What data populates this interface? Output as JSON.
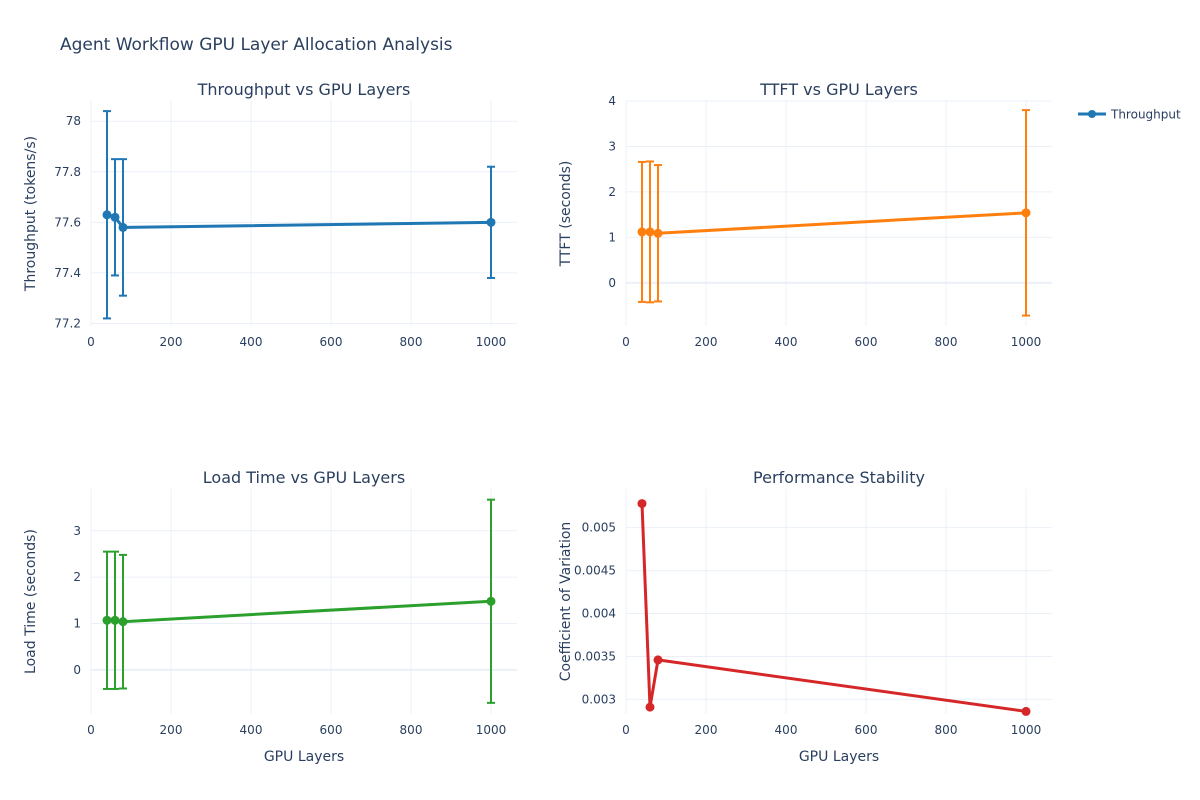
{
  "title": "Agent Workflow GPU Layer Allocation Analysis",
  "legend": {
    "label": "Throughput",
    "color": "#1f77b4",
    "position": "top-right"
  },
  "chart_data": [
    {
      "type": "line",
      "title": "Throughput vs GPU Layers",
      "xlabel": "",
      "ylabel": "Throughput (tokens/s)",
      "color": "#1f77b4",
      "error_bars": true,
      "xlim": [
        0,
        1065
      ],
      "ylim": [
        77.19,
        78.08
      ],
      "xticks": [
        0,
        200,
        400,
        600,
        800,
        1000
      ],
      "yticks": [
        77.2,
        77.4,
        77.6,
        77.8,
        78
      ],
      "yticklabels": [
        "77.2",
        "77.4",
        "77.6",
        "77.8",
        "78"
      ],
      "x": [
        40,
        60,
        80,
        1000
      ],
      "y": [
        77.63,
        77.62,
        77.58,
        77.6
      ],
      "err": [
        0.41,
        0.23,
        0.27,
        0.22
      ],
      "grid": true
    },
    {
      "type": "line",
      "title": "TTFT vs GPU Layers",
      "xlabel": "",
      "ylabel": "TTFT (seconds)",
      "color": "#ff7f0e",
      "error_bars": true,
      "xlim": [
        0,
        1065
      ],
      "ylim": [
        -0.95,
        4.0
      ],
      "xticks": [
        0,
        200,
        400,
        600,
        800,
        1000
      ],
      "yticks": [
        0,
        1,
        2,
        3,
        4
      ],
      "yticklabels": [
        "0",
        "1",
        "2",
        "3",
        "4"
      ],
      "x": [
        40,
        60,
        80,
        1000
      ],
      "y": [
        1.12,
        1.12,
        1.09,
        1.54
      ],
      "err": [
        1.54,
        1.55,
        1.5,
        2.26
      ],
      "grid": true
    },
    {
      "type": "line",
      "title": "Load Time vs GPU Layers",
      "xlabel": "GPU Layers",
      "ylabel": "Load Time (seconds)",
      "color": "#2ca02c",
      "error_bars": true,
      "xlim": [
        0,
        1065
      ],
      "ylim": [
        -0.95,
        3.9
      ],
      "xticks": [
        0,
        200,
        400,
        600,
        800,
        1000
      ],
      "yticks": [
        0,
        1,
        2,
        3
      ],
      "yticklabels": [
        "0",
        "1",
        "2",
        "3"
      ],
      "x": [
        40,
        60,
        80,
        1000
      ],
      "y": [
        1.07,
        1.07,
        1.04,
        1.48
      ],
      "err": [
        1.48,
        1.48,
        1.44,
        2.19
      ],
      "grid": true
    },
    {
      "type": "line",
      "title": "Performance Stability",
      "xlabel": "GPU Layers",
      "ylabel": "Coefficient of Variation",
      "color": "#d62728",
      "error_bars": false,
      "xlim": [
        0,
        1065
      ],
      "ylim": [
        0.00283,
        0.00545
      ],
      "xticks": [
        0,
        200,
        400,
        600,
        800,
        1000
      ],
      "yticks": [
        0.003,
        0.0035,
        0.004,
        0.0045,
        0.005
      ],
      "yticklabels": [
        "0.003",
        "0.0035",
        "0.004",
        "0.0045",
        "0.005"
      ],
      "x": [
        40,
        60,
        80,
        1000
      ],
      "y": [
        0.00528,
        0.00291,
        0.00346,
        0.00286
      ],
      "grid": true
    }
  ]
}
